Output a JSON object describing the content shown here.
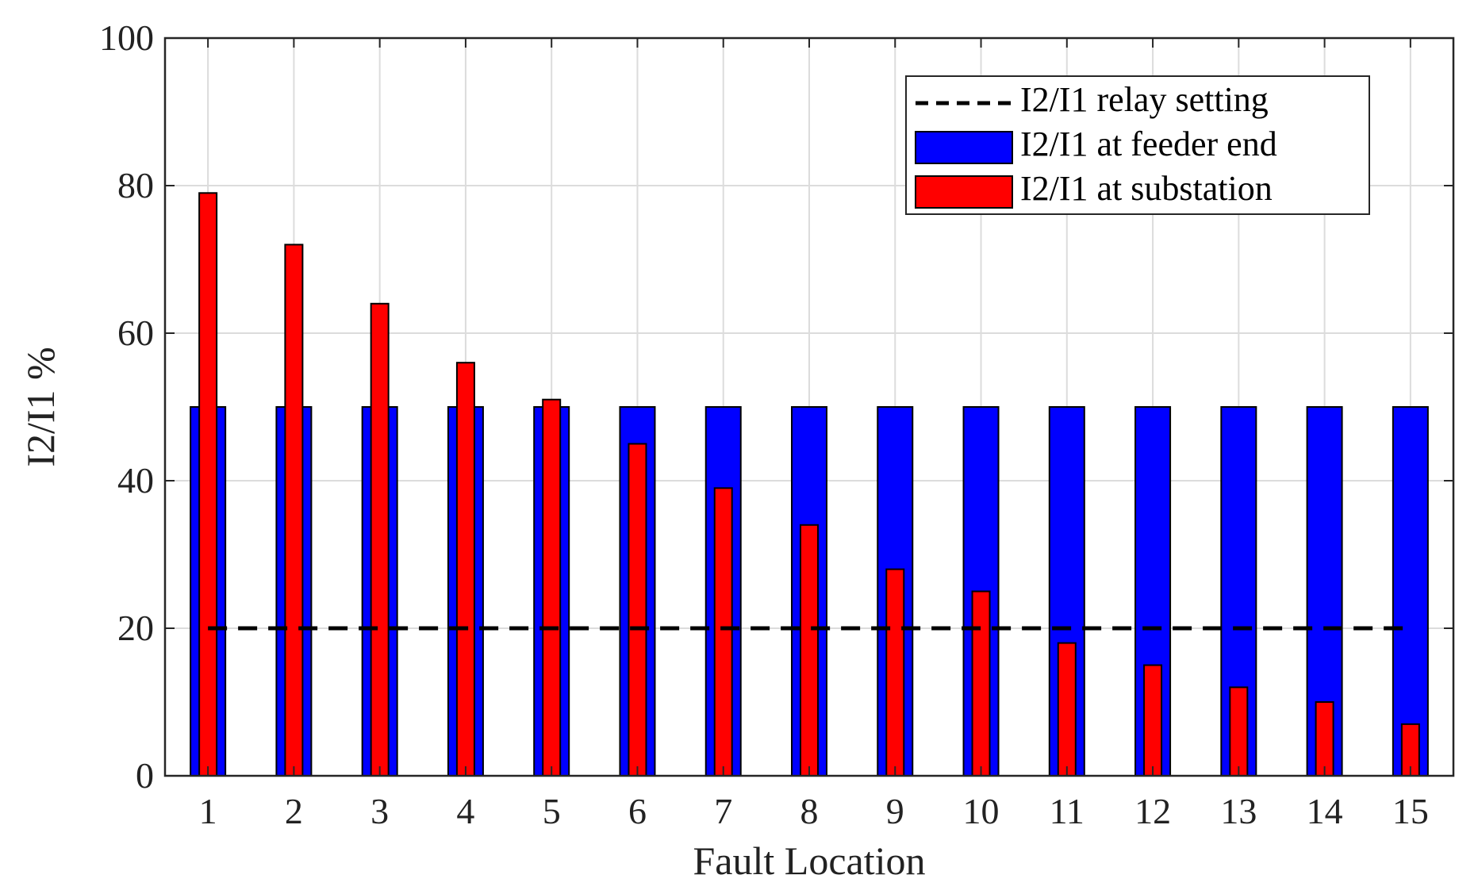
{
  "chart_data": {
    "type": "bar",
    "xlabel": "Fault Location",
    "ylabel": "I2/I1 %",
    "ylim": [
      0,
      100
    ],
    "yticks": [
      0,
      20,
      40,
      60,
      80,
      100
    ],
    "categories": [
      "1",
      "2",
      "3",
      "4",
      "5",
      "6",
      "7",
      "8",
      "9",
      "10",
      "11",
      "12",
      "13",
      "14",
      "15"
    ],
    "grid": true,
    "legend_position": "top-right",
    "series": [
      {
        "name": "I2/I1 at feeder end",
        "color": "#0000ff",
        "values": [
          50,
          50,
          50,
          50,
          50,
          50,
          50,
          50,
          50,
          50,
          50,
          50,
          50,
          50,
          50
        ]
      },
      {
        "name": "I2/I1 at substation",
        "color": "#ff0000",
        "values": [
          79,
          72,
          64,
          56,
          51,
          45,
          39,
          34,
          28,
          25,
          18,
          15,
          12,
          10,
          7
        ]
      }
    ],
    "reference_line": {
      "name": "I2/I1 relay setting",
      "value": 20,
      "style": "dashed",
      "color": "#000000"
    }
  }
}
